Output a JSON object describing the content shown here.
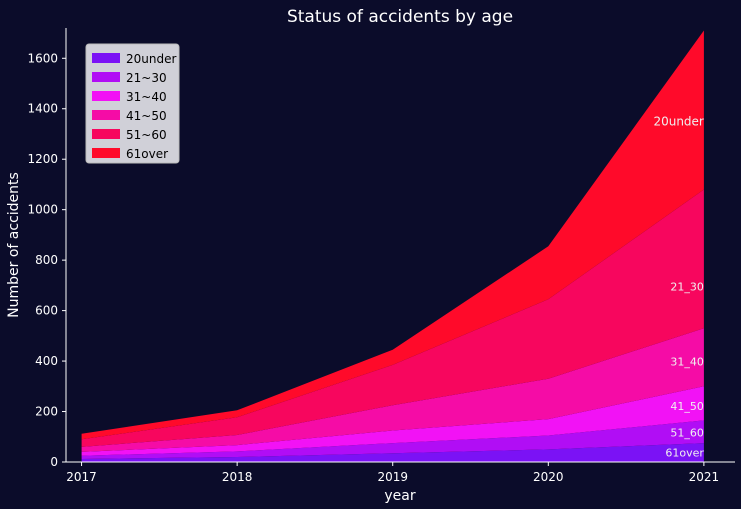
{
  "chart_data": {
    "type": "area",
    "stacked": true,
    "title": "Status of accidents by age",
    "xlabel": "year",
    "ylabel": "Number of accidents",
    "x": [
      2017,
      2018,
      2019,
      2020,
      2021
    ],
    "xlim": [
      2016.9,
      2021.2
    ],
    "ylim": [
      0,
      1720
    ],
    "yticks": [
      0,
      200,
      400,
      600,
      800,
      1000,
      1200,
      1400,
      1600
    ],
    "legend_position": "top-left",
    "series": [
      {
        "name": "20under",
        "color": "#7b12f5",
        "values": [
          12,
          20,
          35,
          50,
          75
        ]
      },
      {
        "name": "21~30",
        "color": "#b10df5",
        "values": [
          13,
          22,
          40,
          55,
          90
        ]
      },
      {
        "name": "31~40",
        "color": "#f212f5",
        "values": [
          15,
          25,
          50,
          65,
          135
        ]
      },
      {
        "name": "41~50",
        "color": "#f50ca6",
        "values": [
          20,
          40,
          100,
          160,
          230
        ]
      },
      {
        "name": "51~60",
        "color": "#f7065e",
        "values": [
          30,
          70,
          160,
          315,
          550
        ]
      },
      {
        "name": "61over",
        "color": "#ff0a2a",
        "values": [
          22,
          28,
          60,
          210,
          630
        ]
      }
    ],
    "annotations": [
      {
        "text": "20under",
        "x": 2021,
        "y": 1350
      },
      {
        "text": "21_30",
        "x": 2021,
        "y": 695
      },
      {
        "text": "31_40",
        "x": 2021,
        "y": 398
      },
      {
        "text": "41_50",
        "x": 2021,
        "y": 222
      },
      {
        "text": "51_60",
        "x": 2021,
        "y": 117
      },
      {
        "text": "61over",
        "x": 2021,
        "y": 37
      }
    ],
    "colors": {
      "background": "#0b0c2a",
      "text": "#ffffff",
      "legend_bg": "#d0d0d8",
      "legend_text": "#000000"
    }
  }
}
